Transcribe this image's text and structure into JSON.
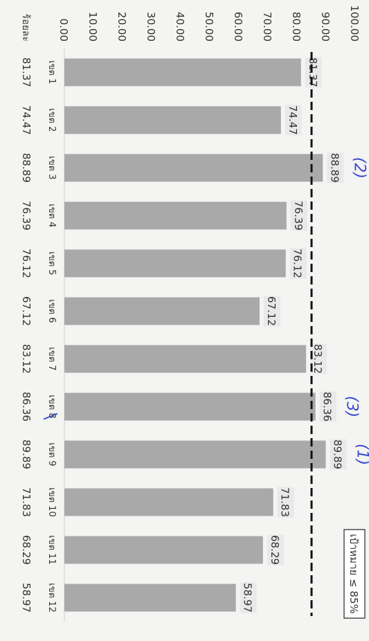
{
  "chart_data": {
    "type": "bar",
    "orientation": "vertical",
    "rotation": "rotated 90 degrees clockwise",
    "categories": [
      "เขต 1",
      "เขต 2",
      "เขต 3",
      "เขต 4",
      "เขต 5",
      "เขต 6",
      "เขต 7",
      "เขต 8",
      "เขต 9",
      "เขต 10",
      "เขต 11",
      "เขต 12"
    ],
    "values": [
      81.37,
      74.47,
      88.89,
      76.39,
      76.12,
      67.12,
      83.12,
      86.36,
      89.89,
      71.83,
      68.29,
      58.97
    ],
    "value_labels": [
      "81.37",
      "74.47",
      "88.89",
      "76.39",
      "76.12",
      "67.12",
      "83.12",
      "86.36",
      "89.89",
      "71.83",
      "68.29",
      "58.97"
    ],
    "y_ticks": [
      "0.00",
      "10.00",
      "20.00",
      "30.00",
      "40.00",
      "50.00",
      "60.00",
      "70.00",
      "80.00",
      "90.00",
      "100.00"
    ],
    "ylim": [
      0,
      100
    ],
    "table_row_label": "ร้อยละ",
    "target_line": {
      "value": 85,
      "label": "เป้าหมาย ≤ 85%",
      "style": "dashed"
    },
    "handwritten_marks": [
      {
        "text": "(2)",
        "category": "เขต 3"
      },
      {
        "text": "(3)",
        "category": "เขต 8"
      },
      {
        "text": "(1)",
        "category": "เขต 9"
      }
    ],
    "colors": {
      "bar": "#a9a9a9",
      "value_label_bg": "#e9e9e9",
      "annotation": "#3b4bd0",
      "target_line": "#111111"
    }
  }
}
